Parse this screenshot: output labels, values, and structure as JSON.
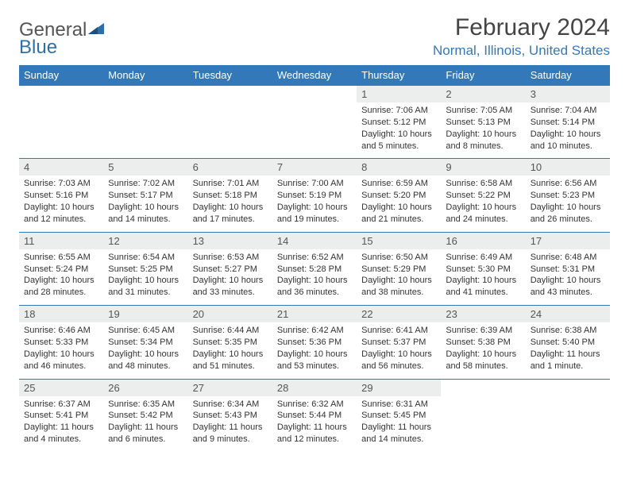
{
  "logo": {
    "part1": "General",
    "part2": "Blue",
    "color1": "#6a6a6a",
    "color2": "#2f6fa8"
  },
  "title": "February 2024",
  "location": "Normal, Illinois, United States",
  "colors": {
    "header_bg": "#3378b8",
    "header_text": "#ffffff",
    "daynum_bg": "#eceded",
    "border": "#3378b8",
    "location_text": "#3378b8"
  },
  "day_headers": [
    "Sunday",
    "Monday",
    "Tuesday",
    "Wednesday",
    "Thursday",
    "Friday",
    "Saturday"
  ],
  "weeks": [
    [
      {
        "blank": true
      },
      {
        "blank": true
      },
      {
        "blank": true
      },
      {
        "blank": true
      },
      {
        "num": "1",
        "sunrise": "7:06 AM",
        "sunset": "5:12 PM",
        "daylight": "10 hours and 5 minutes."
      },
      {
        "num": "2",
        "sunrise": "7:05 AM",
        "sunset": "5:13 PM",
        "daylight": "10 hours and 8 minutes."
      },
      {
        "num": "3",
        "sunrise": "7:04 AM",
        "sunset": "5:14 PM",
        "daylight": "10 hours and 10 minutes."
      }
    ],
    [
      {
        "num": "4",
        "sunrise": "7:03 AM",
        "sunset": "5:16 PM",
        "daylight": "10 hours and 12 minutes."
      },
      {
        "num": "5",
        "sunrise": "7:02 AM",
        "sunset": "5:17 PM",
        "daylight": "10 hours and 14 minutes."
      },
      {
        "num": "6",
        "sunrise": "7:01 AM",
        "sunset": "5:18 PM",
        "daylight": "10 hours and 17 minutes."
      },
      {
        "num": "7",
        "sunrise": "7:00 AM",
        "sunset": "5:19 PM",
        "daylight": "10 hours and 19 minutes."
      },
      {
        "num": "8",
        "sunrise": "6:59 AM",
        "sunset": "5:20 PM",
        "daylight": "10 hours and 21 minutes."
      },
      {
        "num": "9",
        "sunrise": "6:58 AM",
        "sunset": "5:22 PM",
        "daylight": "10 hours and 24 minutes."
      },
      {
        "num": "10",
        "sunrise": "6:56 AM",
        "sunset": "5:23 PM",
        "daylight": "10 hours and 26 minutes."
      }
    ],
    [
      {
        "num": "11",
        "sunrise": "6:55 AM",
        "sunset": "5:24 PM",
        "daylight": "10 hours and 28 minutes."
      },
      {
        "num": "12",
        "sunrise": "6:54 AM",
        "sunset": "5:25 PM",
        "daylight": "10 hours and 31 minutes."
      },
      {
        "num": "13",
        "sunrise": "6:53 AM",
        "sunset": "5:27 PM",
        "daylight": "10 hours and 33 minutes."
      },
      {
        "num": "14",
        "sunrise": "6:52 AM",
        "sunset": "5:28 PM",
        "daylight": "10 hours and 36 minutes."
      },
      {
        "num": "15",
        "sunrise": "6:50 AM",
        "sunset": "5:29 PM",
        "daylight": "10 hours and 38 minutes."
      },
      {
        "num": "16",
        "sunrise": "6:49 AM",
        "sunset": "5:30 PM",
        "daylight": "10 hours and 41 minutes."
      },
      {
        "num": "17",
        "sunrise": "6:48 AM",
        "sunset": "5:31 PM",
        "daylight": "10 hours and 43 minutes."
      }
    ],
    [
      {
        "num": "18",
        "sunrise": "6:46 AM",
        "sunset": "5:33 PM",
        "daylight": "10 hours and 46 minutes."
      },
      {
        "num": "19",
        "sunrise": "6:45 AM",
        "sunset": "5:34 PM",
        "daylight": "10 hours and 48 minutes."
      },
      {
        "num": "20",
        "sunrise": "6:44 AM",
        "sunset": "5:35 PM",
        "daylight": "10 hours and 51 minutes."
      },
      {
        "num": "21",
        "sunrise": "6:42 AM",
        "sunset": "5:36 PM",
        "daylight": "10 hours and 53 minutes."
      },
      {
        "num": "22",
        "sunrise": "6:41 AM",
        "sunset": "5:37 PM",
        "daylight": "10 hours and 56 minutes."
      },
      {
        "num": "23",
        "sunrise": "6:39 AM",
        "sunset": "5:38 PM",
        "daylight": "10 hours and 58 minutes."
      },
      {
        "num": "24",
        "sunrise": "6:38 AM",
        "sunset": "5:40 PM",
        "daylight": "11 hours and 1 minute."
      }
    ],
    [
      {
        "num": "25",
        "sunrise": "6:37 AM",
        "sunset": "5:41 PM",
        "daylight": "11 hours and 4 minutes."
      },
      {
        "num": "26",
        "sunrise": "6:35 AM",
        "sunset": "5:42 PM",
        "daylight": "11 hours and 6 minutes."
      },
      {
        "num": "27",
        "sunrise": "6:34 AM",
        "sunset": "5:43 PM",
        "daylight": "11 hours and 9 minutes."
      },
      {
        "num": "28",
        "sunrise": "6:32 AM",
        "sunset": "5:44 PM",
        "daylight": "11 hours and 12 minutes."
      },
      {
        "num": "29",
        "sunrise": "6:31 AM",
        "sunset": "5:45 PM",
        "daylight": "11 hours and 14 minutes."
      },
      {
        "blank": true
      },
      {
        "blank": true
      }
    ]
  ],
  "labels": {
    "sunrise": "Sunrise:",
    "sunset": "Sunset:",
    "daylight": "Daylight:"
  }
}
